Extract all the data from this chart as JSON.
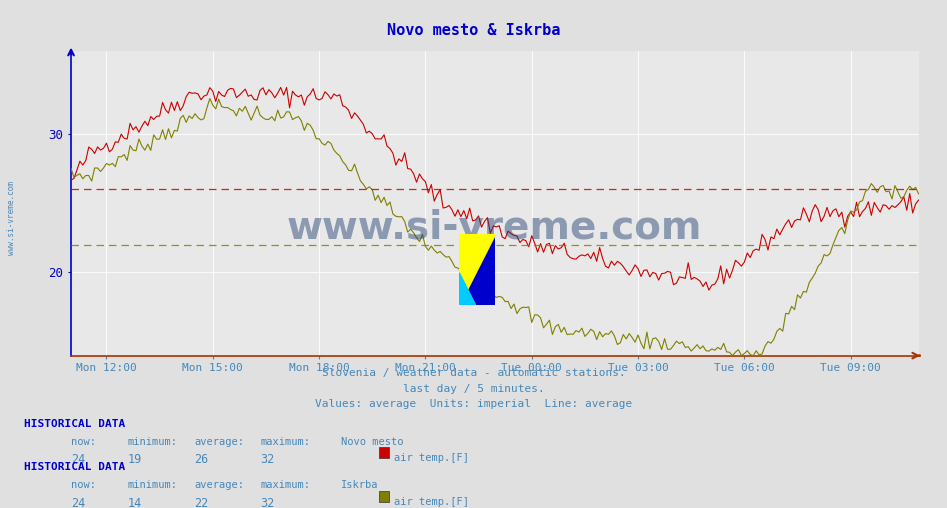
{
  "title": "Novo mesto & Iskrba",
  "title_color": "#0000cc",
  "bg_color": "#e0e0e0",
  "plot_bg_color": "#e8e8e8",
  "grid_color": "#ffffff",
  "xlabel_color": "#4488bb",
  "ylabel_color": "#0000cc",
  "watermark": "www.si-vreme.com",
  "watermark_color": "#1a3a6e",
  "footer_line1": "Slovenia / weather data - automatic stations.",
  "footer_line2": "last day / 5 minutes.",
  "footer_line3": "Values: average  Units: imperial  Line: average",
  "footer_color": "#4488bb",
  "line1_color": "#cc0000",
  "line2_color": "#808000",
  "avg1_color": "#cc0000",
  "avg2_color": "#808000",
  "avg1": 26,
  "avg2": 22,
  "ylim_min": 14,
  "ylim_max": 36,
  "yticks": [
    20,
    30
  ],
  "xtick_labels": [
    "Mon 12:00",
    "Mon 15:00",
    "Mon 18:00",
    "Mon 21:00",
    "Tue 00:00",
    "Tue 03:00",
    "Tue 06:00",
    "Tue 09:00"
  ],
  "hist1_label": "HISTORICAL DATA",
  "stat1_now": 24,
  "stat1_min": 19,
  "stat1_avg": 26,
  "stat1_max": 32,
  "stat1_station": "Novo mesto",
  "stat1_var": "air temp.[F]",
  "stat2_now": 24,
  "stat2_min": 14,
  "stat2_avg": 22,
  "stat2_max": 32,
  "stat2_station": "Iskrba",
  "stat2_var": "air temp.[F]"
}
